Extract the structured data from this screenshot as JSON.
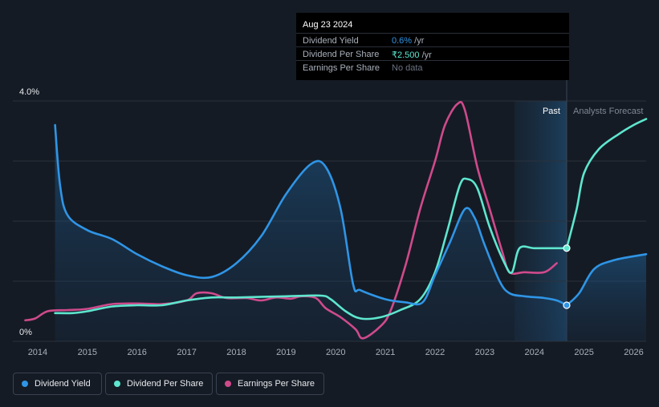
{
  "tooltip": {
    "date": "Aug 23 2024",
    "rows": [
      {
        "label": "Dividend Yield",
        "value": "0.6%",
        "unit": " /yr",
        "color": "#2f95e6"
      },
      {
        "label": "Dividend Per Share",
        "value": "₹2.500",
        "unit": " /yr",
        "color": "#5ee6cf"
      },
      {
        "label": "Earnings Per Share",
        "value": "No data",
        "unit": "",
        "color": "#6b7280"
      }
    ]
  },
  "legend": [
    {
      "label": "Dividend Yield",
      "color": "#2f95e6"
    },
    {
      "label": "Dividend Per Share",
      "color": "#5ee6cf"
    },
    {
      "label": "Earnings Per Share",
      "color": "#cf4a8c"
    }
  ],
  "chart_data": {
    "type": "line",
    "ylabels": [
      "4.0%",
      "0%"
    ],
    "ylim": [
      0,
      4.0
    ],
    "xlim": [
      2013.5,
      2026.25
    ],
    "xticks": [
      "2014",
      "2015",
      "2016",
      "2017",
      "2018",
      "2019",
      "2020",
      "2021",
      "2022",
      "2023",
      "2024",
      "2025",
      "2026"
    ],
    "past_label": "Past",
    "forecast_label": "Analysts Forecast",
    "forecast_start": 2024.65,
    "highlight_start": 2023.6,
    "grid": true,
    "colors": {
      "yield": "#2f95e6",
      "dps": "#5ee6cf",
      "eps": "#cf4a8c"
    },
    "series": [
      {
        "key": "yield",
        "name": "Dividend Yield",
        "area": true,
        "points": [
          [
            2014.35,
            3.6
          ],
          [
            2014.45,
            2.6
          ],
          [
            2014.6,
            2.1
          ],
          [
            2015.0,
            1.85
          ],
          [
            2015.5,
            1.7
          ],
          [
            2016.0,
            1.45
          ],
          [
            2016.5,
            1.25
          ],
          [
            2017.0,
            1.1
          ],
          [
            2017.5,
            1.07
          ],
          [
            2018.0,
            1.3
          ],
          [
            2018.5,
            1.75
          ],
          [
            2019.0,
            2.45
          ],
          [
            2019.5,
            2.95
          ],
          [
            2019.8,
            2.9
          ],
          [
            2020.1,
            2.2
          ],
          [
            2020.35,
            0.95
          ],
          [
            2020.5,
            0.85
          ],
          [
            2021.0,
            0.7
          ],
          [
            2021.4,
            0.65
          ],
          [
            2021.75,
            0.65
          ],
          [
            2022.0,
            1.1
          ],
          [
            2022.3,
            1.65
          ],
          [
            2022.6,
            2.2
          ],
          [
            2022.8,
            2.05
          ],
          [
            2023.0,
            1.6
          ],
          [
            2023.3,
            1.0
          ],
          [
            2023.5,
            0.8
          ],
          [
            2023.8,
            0.75
          ],
          [
            2024.2,
            0.72
          ],
          [
            2024.45,
            0.68
          ],
          [
            2024.65,
            0.6
          ]
        ]
      },
      {
        "key": "yield_fc",
        "name": "Dividend Yield",
        "points": [
          [
            2024.65,
            0.6
          ],
          [
            2024.9,
            0.8
          ],
          [
            2025.2,
            1.2
          ],
          [
            2025.6,
            1.35
          ],
          [
            2026.25,
            1.45
          ]
        ]
      },
      {
        "key": "dps",
        "name": "Dividend Per Share",
        "points": [
          [
            2014.35,
            0.47
          ],
          [
            2014.7,
            0.47
          ],
          [
            2015.0,
            0.5
          ],
          [
            2015.5,
            0.58
          ],
          [
            2016.0,
            0.6
          ],
          [
            2016.5,
            0.6
          ],
          [
            2017.0,
            0.68
          ],
          [
            2017.5,
            0.73
          ],
          [
            2018.0,
            0.73
          ],
          [
            2019.0,
            0.75
          ],
          [
            2019.7,
            0.76
          ],
          [
            2019.9,
            0.7
          ],
          [
            2020.2,
            0.5
          ],
          [
            2020.5,
            0.38
          ],
          [
            2020.9,
            0.4
          ],
          [
            2021.3,
            0.52
          ],
          [
            2021.7,
            0.7
          ],
          [
            2022.0,
            1.15
          ],
          [
            2022.25,
            1.85
          ],
          [
            2022.5,
            2.6
          ],
          [
            2022.65,
            2.7
          ],
          [
            2022.85,
            2.55
          ],
          [
            2023.1,
            1.9
          ],
          [
            2023.4,
            1.3
          ],
          [
            2023.55,
            1.15
          ],
          [
            2023.7,
            1.55
          ],
          [
            2024.0,
            1.55
          ],
          [
            2024.4,
            1.55
          ],
          [
            2024.65,
            1.55
          ]
        ]
      },
      {
        "key": "dps_fc",
        "name": "Dividend Per Share",
        "points": [
          [
            2024.65,
            1.55
          ],
          [
            2024.85,
            2.2
          ],
          [
            2025.0,
            2.8
          ],
          [
            2025.3,
            3.2
          ],
          [
            2025.7,
            3.45
          ],
          [
            2026.0,
            3.6
          ],
          [
            2026.25,
            3.7
          ]
        ]
      },
      {
        "key": "eps",
        "name": "Earnings Per Share",
        "points": [
          [
            2013.75,
            0.35
          ],
          [
            2013.95,
            0.38
          ],
          [
            2014.2,
            0.5
          ],
          [
            2014.6,
            0.52
          ],
          [
            2015.0,
            0.54
          ],
          [
            2015.5,
            0.62
          ],
          [
            2016.0,
            0.63
          ],
          [
            2016.5,
            0.62
          ],
          [
            2017.0,
            0.68
          ],
          [
            2017.2,
            0.8
          ],
          [
            2017.5,
            0.8
          ],
          [
            2017.8,
            0.72
          ],
          [
            2018.2,
            0.72
          ],
          [
            2018.5,
            0.68
          ],
          [
            2018.8,
            0.73
          ],
          [
            2019.1,
            0.71
          ],
          [
            2019.3,
            0.75
          ],
          [
            2019.6,
            0.72
          ],
          [
            2019.8,
            0.55
          ],
          [
            2020.1,
            0.4
          ],
          [
            2020.4,
            0.2
          ],
          [
            2020.55,
            0.05
          ],
          [
            2020.9,
            0.25
          ],
          [
            2021.1,
            0.5
          ],
          [
            2021.4,
            1.25
          ],
          [
            2021.7,
            2.2
          ],
          [
            2022.0,
            3.0
          ],
          [
            2022.2,
            3.6
          ],
          [
            2022.45,
            3.95
          ],
          [
            2022.6,
            3.85
          ],
          [
            2022.85,
            2.9
          ],
          [
            2023.1,
            2.2
          ],
          [
            2023.35,
            1.5
          ],
          [
            2023.5,
            1.15
          ],
          [
            2023.8,
            1.15
          ],
          [
            2024.2,
            1.15
          ],
          [
            2024.45,
            1.3
          ]
        ]
      }
    ]
  }
}
